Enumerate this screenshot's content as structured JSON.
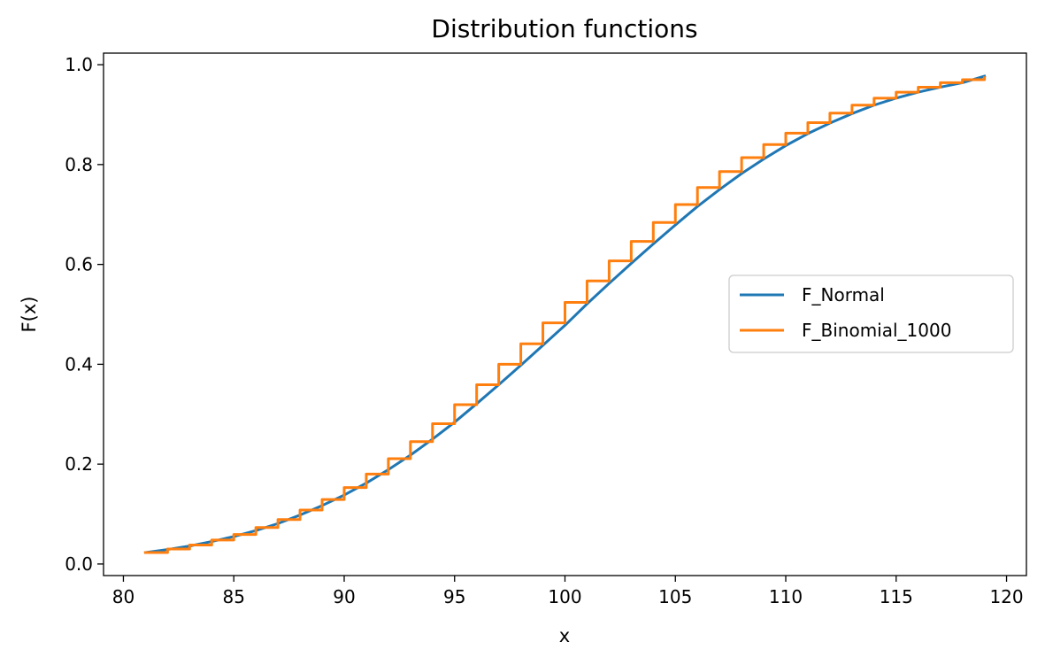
{
  "chart_data": {
    "type": "line",
    "title": "Distribution functions",
    "xlabel": "x",
    "ylabel": "F(x)",
    "xlim": [
      79.1,
      120.9
    ],
    "ylim": [
      -0.0232,
      1.0232
    ],
    "xticks": [
      80,
      85,
      90,
      95,
      100,
      105,
      110,
      115,
      120
    ],
    "yticks": [
      0.0,
      0.2,
      0.4,
      0.6,
      0.8,
      1.0
    ],
    "xtick_labels": [
      "80",
      "85",
      "90",
      "95",
      "100",
      "105",
      "110",
      "115",
      "120"
    ],
    "ytick_labels": [
      "0.0",
      "0.2",
      "0.4",
      "0.6",
      "0.8",
      "1.0"
    ],
    "grid": false,
    "legend_position": "center-right",
    "series": [
      {
        "name": "F_Normal",
        "color": "#1f77b4",
        "style": "smooth",
        "x": [
          81,
          82,
          83,
          84,
          85,
          86,
          87,
          88,
          89,
          90,
          91,
          92,
          93,
          94,
          95,
          96,
          97,
          98,
          99,
          100,
          101,
          102,
          103,
          104,
          105,
          106,
          107,
          108,
          109,
          110,
          111,
          112,
          113,
          114,
          115,
          116,
          117,
          118,
          119
        ],
        "y": [
          0.023,
          0.029,
          0.036,
          0.045,
          0.055,
          0.067,
          0.081,
          0.098,
          0.117,
          0.138,
          0.162,
          0.189,
          0.218,
          0.25,
          0.284,
          0.321,
          0.359,
          0.398,
          0.438,
          0.478,
          0.521,
          0.562,
          0.602,
          0.641,
          0.679,
          0.716,
          0.75,
          0.782,
          0.811,
          0.838,
          0.862,
          0.883,
          0.902,
          0.919,
          0.933,
          0.945,
          0.955,
          0.964,
          0.977
        ]
      },
      {
        "name": "F_Binomial_1000",
        "color": "#ff7f0e",
        "style": "step",
        "x": [
          81,
          82,
          83,
          84,
          85,
          86,
          87,
          88,
          89,
          90,
          91,
          92,
          93,
          94,
          95,
          96,
          97,
          98,
          99,
          100,
          101,
          102,
          103,
          104,
          105,
          106,
          107,
          108,
          109,
          110,
          111,
          112,
          113,
          114,
          115,
          116,
          117,
          118,
          119
        ],
        "y": [
          0.023,
          0.03,
          0.038,
          0.048,
          0.059,
          0.073,
          0.089,
          0.108,
          0.129,
          0.153,
          0.18,
          0.211,
          0.245,
          0.281,
          0.319,
          0.359,
          0.4,
          0.441,
          0.483,
          0.524,
          0.567,
          0.607,
          0.646,
          0.684,
          0.72,
          0.754,
          0.786,
          0.814,
          0.84,
          0.863,
          0.884,
          0.903,
          0.919,
          0.933,
          0.945,
          0.955,
          0.964,
          0.97,
          0.974
        ]
      }
    ]
  }
}
